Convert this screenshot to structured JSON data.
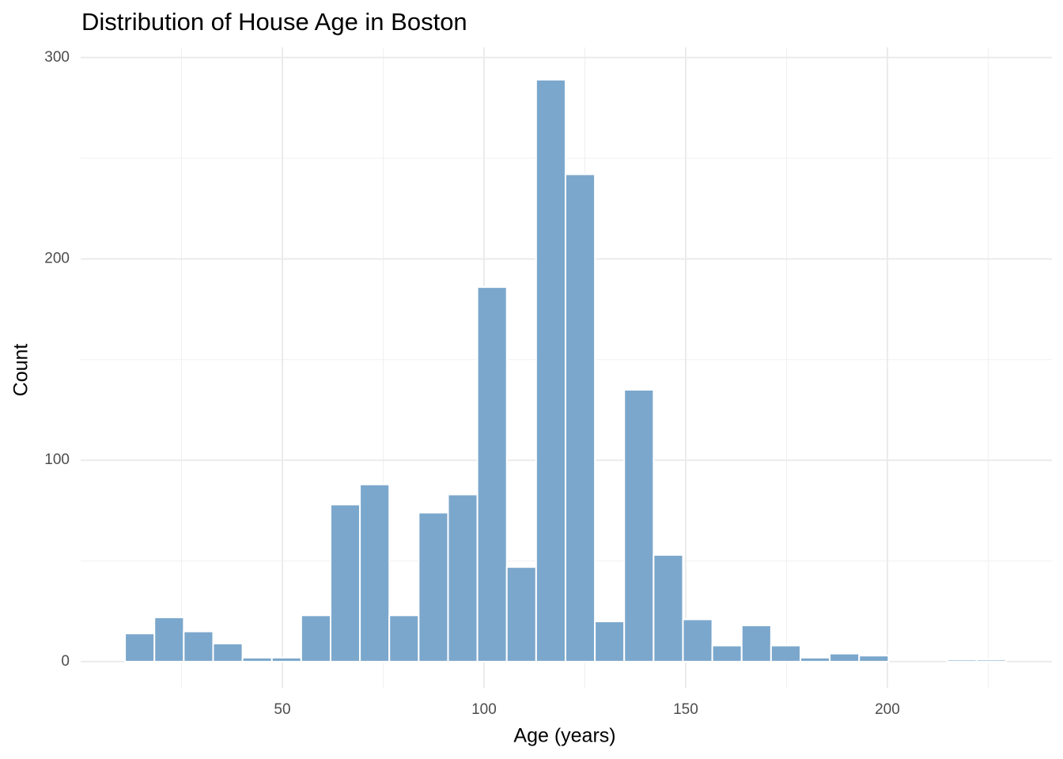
{
  "chart_data": {
    "type": "histogram",
    "title": "Distribution of House Age in Boston",
    "x_label": "Age (years)",
    "y_label": "Count",
    "bins": [
      11.0,
      18.28,
      25.56,
      32.84,
      40.12,
      47.4,
      54.68,
      61.96,
      69.24,
      76.52,
      83.8,
      91.08,
      98.36,
      105.64,
      112.92,
      120.2,
      127.48,
      134.76,
      142.04,
      149.32,
      156.6,
      163.88,
      171.16,
      178.44,
      185.72,
      193.0,
      200.28,
      207.56,
      214.84,
      222.12,
      229.4
    ],
    "values": [
      14,
      22,
      15,
      9,
      2,
      2,
      23,
      78,
      88,
      23,
      74,
      83,
      186,
      47,
      289,
      242,
      20,
      135,
      53,
      21,
      8,
      18,
      8,
      2,
      4,
      3,
      0,
      0,
      1,
      1
    ],
    "color": "#7ba7cc",
    "edge_color": "#ffffff",
    "xlim": [
      0,
      240.8
    ],
    "ylim": [
      -13,
      305
    ],
    "xticks": [
      50,
      100,
      150,
      200
    ],
    "yticks": [
      0,
      100,
      200,
      300
    ],
    "x_minor_ticks": [
      25,
      75,
      125,
      175,
      225
    ],
    "y_minor_ticks": [
      50,
      150,
      250
    ],
    "grid": true
  }
}
